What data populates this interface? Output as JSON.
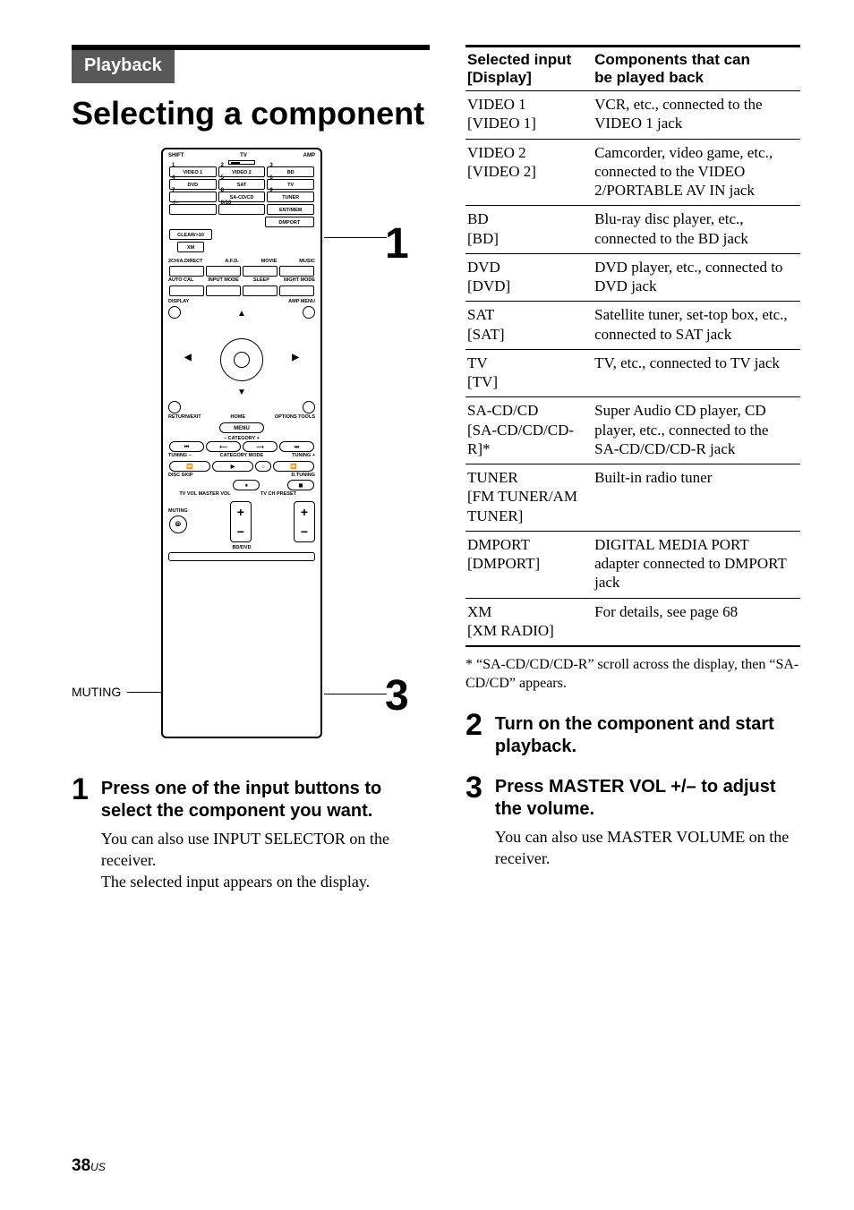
{
  "section_label": "Playback",
  "page_title": "Selecting a component",
  "remote": {
    "top_labels": [
      "SHIFT",
      "TV",
      "AMP"
    ],
    "row1_nums": [
      "1",
      "2",
      "3"
    ],
    "row1_labels": [
      "VIDEO 1",
      "VIDEO 2",
      "BD"
    ],
    "row2_nums": [
      "4",
      "5",
      "6"
    ],
    "row2_labels": [
      "DVD",
      "SAT",
      "TV"
    ],
    "row3_nums": [
      "7",
      "8",
      "9"
    ],
    "row3_labels": [
      "",
      "SA-CD/CD",
      "TUNER"
    ],
    "row4_nums": [
      "-/--",
      "0/10",
      ""
    ],
    "row4_labels": [
      "",
      "",
      "ENT/MEM"
    ],
    "dmport": "DMPORT",
    "clear": "CLEAR/>10",
    "xm": "XM",
    "sound_row1": [
      "2CH/A.DIRECT",
      "A.F.D.",
      "MOVIE",
      "MUSIC"
    ],
    "sound_row2": [
      "AUTO CAL",
      "INPUT MODE",
      "SLEEP",
      "NIGHT MODE"
    ],
    "display": "DISPLAY",
    "amp_menu": "AMP MENU",
    "return": "RETURN/EXIT",
    "home": "HOME",
    "menu": "MENU",
    "options": "OPTIONS TOOLS",
    "category": "– CATEGORY +",
    "tuning_row": [
      "TUNING –",
      "CATEGORY MODE",
      "TUNING +"
    ],
    "disc_skip": "DISC SKIP",
    "dtuning": "D.TUNING",
    "tv_vol": "TV VOL MASTER VOL",
    "tv_ch": "TV CH PRESET",
    "muting": "MUTING",
    "bd_dvd": "BD/DVD"
  },
  "callouts": {
    "one": "1",
    "three": "3",
    "muting": "MUTING"
  },
  "steps_left": {
    "num": "1",
    "head": "Press one of the input buttons to select the component you want.",
    "body1": "You can also use INPUT SELECTOR on the receiver.",
    "body2": "The selected input appears on the display."
  },
  "table": {
    "head_left_1": "Selected input",
    "head_left_2": "[Display]",
    "head_right_1": "Components that can",
    "head_right_2": "be played back",
    "rows": [
      {
        "l1": "VIDEO 1",
        "l2": "[VIDEO 1]",
        "r": "VCR, etc., connected to the VIDEO 1 jack"
      },
      {
        "l1": "VIDEO 2",
        "l2": "[VIDEO 2]",
        "r": "Camcorder, video game, etc., connected to the VIDEO 2/PORTABLE AV IN jack"
      },
      {
        "l1": "BD",
        "l2": "[BD]",
        "r": "Blu-ray disc player, etc., connected to the BD jack"
      },
      {
        "l1": "DVD",
        "l2": "[DVD]",
        "r": "DVD player, etc., connected to DVD jack"
      },
      {
        "l1": "SAT",
        "l2": "[SAT]",
        "r": "Satellite tuner, set-top box, etc., connected to SAT jack"
      },
      {
        "l1": "TV",
        "l2": "[TV]",
        "r": "TV, etc., connected to TV jack"
      },
      {
        "l1": "SA-CD/CD",
        "l2": "[SA-CD/CD/CD-R]*",
        "r": "Super Audio CD player, CD player, etc., connected to the SA-CD/CD/CD-R jack"
      },
      {
        "l1": "TUNER",
        "l2": "[FM TUNER/AM TUNER]",
        "r": "Built-in radio tuner"
      },
      {
        "l1": "DMPORT",
        "l2": "[DMPORT]",
        "r": "DIGITAL MEDIA PORT adapter connected to DMPORT jack"
      },
      {
        "l1": "XM",
        "l2": "[XM RADIO]",
        "r": "For details, see page 68"
      }
    ]
  },
  "footnote": "* “SA-CD/CD/CD-R” scroll across the display, then “SA-CD/CD” appears.",
  "step2": {
    "num": "2",
    "head": "Turn on the component and start playback."
  },
  "step3": {
    "num": "3",
    "head": "Press MASTER VOL +/– to adjust the volume.",
    "body": "You can also use MASTER VOLUME on the receiver."
  },
  "page": {
    "num": "38",
    "suffix": "US"
  }
}
